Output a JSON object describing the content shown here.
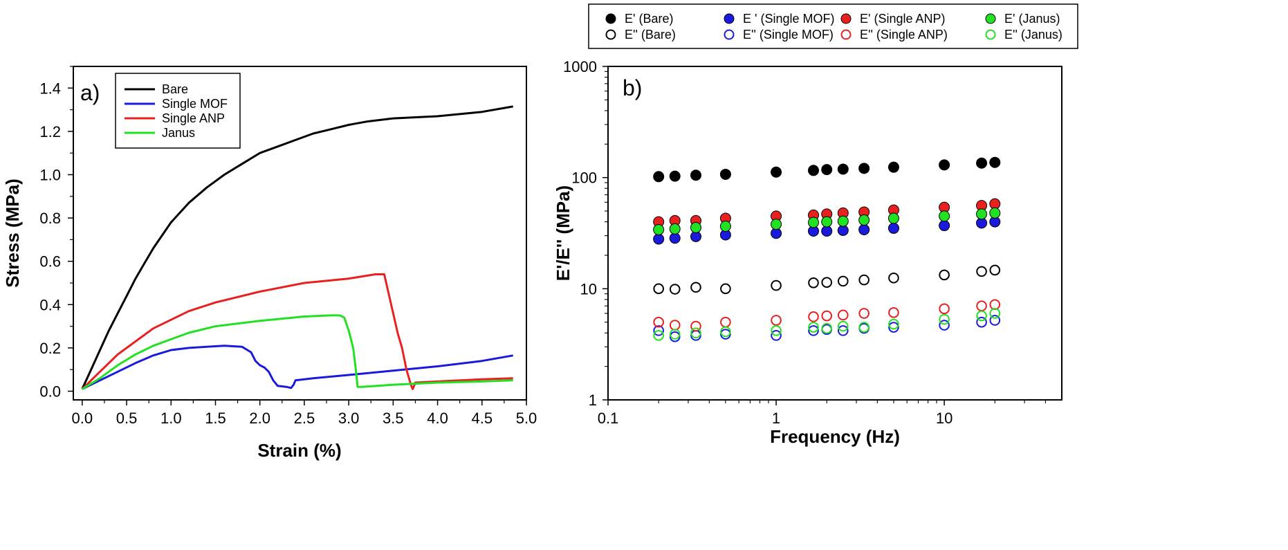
{
  "chart_data": [
    {
      "type": "line",
      "panel_label": "a)",
      "xlabel": "Strain (%)",
      "ylabel": "Stress (MPa)",
      "xlim": [
        -0.1,
        5.0
      ],
      "ylim": [
        -0.04,
        1.5
      ],
      "xticks": [
        "0.0",
        "0.5",
        "1.0",
        "1.5",
        "2.0",
        "2.5",
        "3.0",
        "3.5",
        "4.0",
        "4.5",
        "5.0"
      ],
      "xtick_values": [
        0,
        0.5,
        1.0,
        1.5,
        2.0,
        2.5,
        3.0,
        3.5,
        4.0,
        4.5,
        5.0
      ],
      "yticks": [
        "0.0",
        "0.2",
        "0.4",
        "0.6",
        "0.8",
        "1.0",
        "1.2",
        "1.4"
      ],
      "ytick_values": [
        0,
        0.2,
        0.4,
        0.6,
        0.8,
        1.0,
        1.2,
        1.4
      ],
      "legend_placement": "top-left",
      "series": [
        {
          "name": "Bare",
          "color": "#000000",
          "x": [
            0,
            0.1,
            0.2,
            0.3,
            0.4,
            0.5,
            0.6,
            0.7,
            0.8,
            0.9,
            1.0,
            1.2,
            1.4,
            1.6,
            1.8,
            2.0,
            2.2,
            2.4,
            2.6,
            2.8,
            3.0,
            3.2,
            3.5,
            4.0,
            4.5,
            4.85
          ],
          "y": [
            0.01,
            0.1,
            0.19,
            0.28,
            0.36,
            0.44,
            0.52,
            0.59,
            0.66,
            0.72,
            0.78,
            0.87,
            0.94,
            1.0,
            1.05,
            1.1,
            1.13,
            1.16,
            1.19,
            1.21,
            1.23,
            1.245,
            1.26,
            1.27,
            1.29,
            1.315
          ]
        },
        {
          "name": "Single MOF",
          "color": "#1a1adc",
          "x": [
            0,
            0.2,
            0.4,
            0.6,
            0.8,
            1.0,
            1.2,
            1.4,
            1.6,
            1.8,
            1.9,
            1.95,
            2.0,
            2.05,
            2.1,
            2.15,
            2.2,
            2.3,
            2.35,
            2.38,
            2.4,
            2.6,
            3.0,
            3.5,
            4.0,
            4.5,
            4.85
          ],
          "y": [
            0.01,
            0.05,
            0.09,
            0.13,
            0.165,
            0.19,
            0.2,
            0.205,
            0.21,
            0.205,
            0.18,
            0.14,
            0.12,
            0.11,
            0.09,
            0.05,
            0.025,
            0.02,
            0.015,
            0.03,
            0.05,
            0.06,
            0.075,
            0.095,
            0.115,
            0.14,
            0.165
          ]
        },
        {
          "name": "Single ANP",
          "color": "#e82020",
          "x": [
            0,
            0.2,
            0.4,
            0.6,
            0.8,
            1.0,
            1.2,
            1.5,
            2.0,
            2.5,
            3.0,
            3.3,
            3.4,
            3.45,
            3.5,
            3.55,
            3.6,
            3.65,
            3.7,
            3.72,
            3.75,
            4.0,
            4.5,
            4.85
          ],
          "y": [
            0.01,
            0.09,
            0.17,
            0.23,
            0.29,
            0.33,
            0.37,
            0.41,
            0.46,
            0.5,
            0.52,
            0.54,
            0.54,
            0.45,
            0.36,
            0.27,
            0.2,
            0.1,
            0.03,
            0.01,
            0.04,
            0.045,
            0.055,
            0.06
          ]
        },
        {
          "name": "Janus",
          "color": "#22e022",
          "x": [
            0,
            0.2,
            0.4,
            0.6,
            0.8,
            1.0,
            1.2,
            1.5,
            2.0,
            2.5,
            2.8,
            2.9,
            2.95,
            3.0,
            3.05,
            3.08,
            3.1,
            3.15,
            3.5,
            4.0,
            4.5,
            4.85
          ],
          "y": [
            0.01,
            0.06,
            0.12,
            0.17,
            0.21,
            0.24,
            0.27,
            0.3,
            0.325,
            0.345,
            0.35,
            0.35,
            0.34,
            0.28,
            0.2,
            0.1,
            0.02,
            0.02,
            0.03,
            0.04,
            0.045,
            0.05
          ]
        }
      ]
    },
    {
      "type": "scatter",
      "panel_label": "b)",
      "xlabel": "Frequency (Hz)",
      "ylabel": "E'/E'' (MPa)",
      "xscale": "log",
      "yscale": "log",
      "xlim": [
        0.1,
        50
      ],
      "ylim": [
        1,
        1000
      ],
      "xticks": [
        "0.1",
        "1",
        "10"
      ],
      "xtick_values": [
        0.1,
        1,
        10
      ],
      "yticks": [
        "1",
        "10",
        "100",
        "1000"
      ],
      "ytick_values": [
        1,
        10,
        100,
        1000
      ],
      "legend_placement": "top, outside",
      "x": [
        0.2,
        0.25,
        0.333,
        0.5,
        1,
        1.667,
        2,
        2.5,
        3.333,
        5,
        10,
        16.67,
        20
      ],
      "series": [
        {
          "name": "E' (Bare)",
          "color": "#000000",
          "fill": "filled",
          "values": [
            102,
            103,
            105,
            107,
            112,
            116,
            118,
            119,
            121,
            124,
            130,
            135,
            137
          ]
        },
        {
          "name": "E'' (Bare)",
          "color": "#000000",
          "fill": "hollow",
          "values": [
            10.0,
            9.9,
            10.3,
            10.0,
            10.7,
            11.3,
            11.4,
            11.7,
            12.0,
            12.5,
            13.3,
            14.3,
            14.7
          ]
        },
        {
          "name": "E ' (Single MOF)",
          "color": "#1a1adc",
          "fill": "filled",
          "values": [
            28.0,
            28.5,
            29.5,
            30.5,
            31.5,
            33.0,
            33.0,
            33.5,
            34.0,
            35.0,
            37.0,
            39.0,
            40.0
          ]
        },
        {
          "name": "E'' (Single MOF)",
          "color": "#1a1adc",
          "fill": "hollow",
          "values": [
            4.2,
            3.7,
            3.8,
            3.9,
            3.8,
            4.2,
            4.3,
            4.2,
            4.4,
            4.5,
            4.7,
            5.0,
            5.2
          ]
        },
        {
          "name": "E' (Single ANP)",
          "color": "#e82020",
          "fill": "filled",
          "values": [
            40,
            41,
            41,
            43,
            45,
            46,
            47,
            48,
            49,
            51,
            54,
            56,
            58
          ]
        },
        {
          "name": "E'' (Single ANP)",
          "color": "#e82020",
          "fill": "hollow",
          "values": [
            5.0,
            4.7,
            4.6,
            5.0,
            5.2,
            5.6,
            5.7,
            5.8,
            6.0,
            6.1,
            6.6,
            7.0,
            7.2
          ]
        },
        {
          "name": "E' (Janus)",
          "color": "#22e022",
          "fill": "filled",
          "values": [
            34,
            34.5,
            35.5,
            36.5,
            38,
            39.5,
            40,
            40.5,
            41.5,
            43,
            45,
            47,
            48
          ]
        },
        {
          "name": "E'' (Janus)",
          "color": "#22e022",
          "fill": "hollow",
          "values": [
            3.8,
            3.9,
            4.0,
            4.1,
            4.2,
            4.5,
            4.4,
            4.6,
            4.5,
            4.8,
            5.3,
            5.7,
            6.0
          ]
        }
      ]
    }
  ]
}
